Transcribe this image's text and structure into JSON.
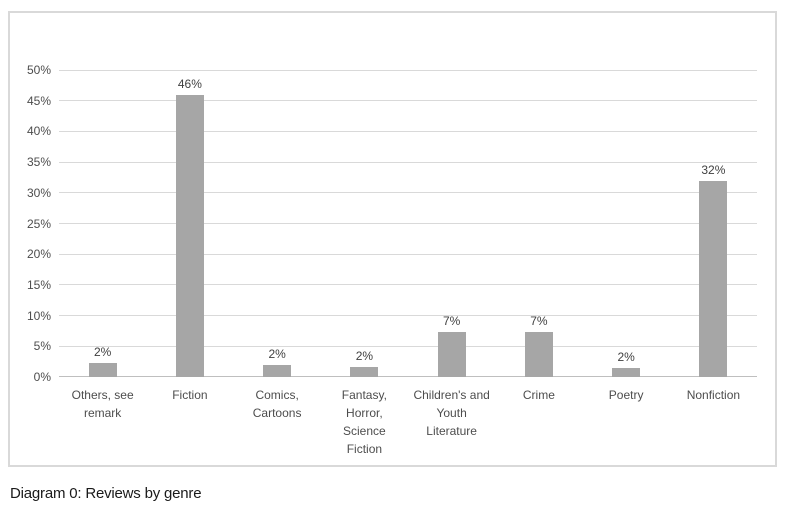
{
  "caption": "Diagram 0: Reviews by genre",
  "colors": {
    "bar": "#a6a6a6",
    "gridline": "#d9d9d9",
    "axis_line": "#bfbfbf",
    "tick_text": "#4d4d4d",
    "label_text": "#404040",
    "panel_border": "#d9d9d9",
    "caption_text": "#1a1a1a",
    "background": "#ffffff"
  },
  "chart_data": {
    "type": "bar",
    "title": "",
    "xlabel": "",
    "ylabel": "",
    "categories": [
      "Others, see remark",
      "Fiction",
      "Comics, Cartoons",
      "Fantasy, Horror, Science Fiction",
      "Children's and Youth Literature",
      "Crime",
      "Poetry",
      "Nonfiction"
    ],
    "category_lines": [
      [
        "Others, see",
        "remark"
      ],
      [
        "Fiction"
      ],
      [
        "Comics,",
        "Cartoons"
      ],
      [
        "Fantasy,",
        "Horror,",
        "Science",
        "Fiction"
      ],
      [
        "Children's and",
        "Youth",
        "Literature"
      ],
      [
        "Crime"
      ],
      [
        "Poetry"
      ],
      [
        "Nonfiction"
      ]
    ],
    "values": [
      2,
      46,
      2,
      2,
      7,
      7,
      2,
      32
    ],
    "values_precise": [
      2.2,
      46,
      2.0,
      1.7,
      7.3,
      7.3,
      1.5,
      32
    ],
    "data_labels": [
      "2%",
      "46%",
      "2%",
      "2%",
      "7%",
      "7%",
      "2%",
      "32%"
    ],
    "ylim": [
      0,
      50
    ],
    "ytick_step": 5,
    "yticks": [
      "50%",
      "45%",
      "40%",
      "35%",
      "30%",
      "25%",
      "20%",
      "15%",
      "10%",
      "5%",
      "0%"
    ],
    "grid": true,
    "legend": "none",
    "bar_color": "#a6a6a6"
  }
}
